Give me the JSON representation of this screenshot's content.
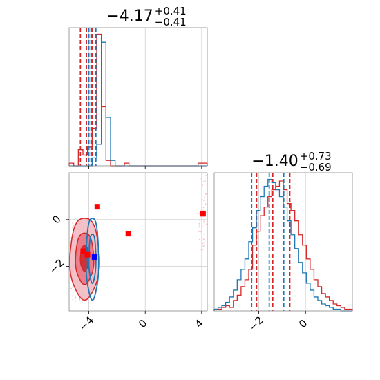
{
  "chart_data": [
    {
      "type": "histogram",
      "panel": "top-left marginal",
      "title": {
        "main": "−4.17",
        "sup": "+0.41",
        "sub": "−0.41"
      },
      "xlim": [
        -5.4,
        4.4
      ],
      "series": [
        {
          "color": "#d62728",
          "values": [
            1,
            0,
            6,
            4,
            7,
            14,
            49,
            22,
            2,
            0,
            0,
            0,
            1,
            0,
            0,
            0,
            0,
            0,
            0,
            0,
            0,
            0,
            0,
            0,
            0,
            0,
            0,
            0,
            1,
            1
          ],
          "quantiles": [
            -4.6,
            -4.17,
            -3.76
          ]
        },
        {
          "color": "#1f77b4",
          "values": [
            0,
            0,
            0,
            0,
            0,
            3,
            8,
            46,
            18,
            2,
            0,
            0,
            0,
            0,
            0,
            0,
            0,
            0,
            0,
            0,
            0,
            0,
            0,
            0,
            0,
            0,
            0,
            0,
            0,
            0
          ],
          "quantiles": [
            -4.0,
            -3.85,
            -3.5
          ]
        }
      ],
      "xticks": [
        -4,
        0,
        4
      ],
      "yticks": []
    },
    {
      "type": "histogram",
      "panel": "bottom-right marginal",
      "title": {
        "main": "−1.40",
        "sup": "+0.73",
        "sub": "−0.69"
      },
      "xlim": [
        -3.9,
        2.0
      ],
      "series": [
        {
          "color": "#d62728",
          "values": [
            1,
            1,
            2,
            3,
            2,
            6,
            9,
            14,
            18,
            24,
            38,
            46,
            55,
            60,
            66,
            70,
            72,
            75,
            70,
            62,
            58,
            52,
            44,
            38,
            30,
            24,
            18,
            14,
            10,
            8,
            6,
            4,
            3,
            2,
            1,
            1
          ],
          "quantiles": [
            -2.09,
            -1.4,
            -0.67
          ]
        },
        {
          "color": "#1f77b4",
          "values": [
            1,
            2,
            3,
            5,
            8,
            12,
            18,
            24,
            30,
            40,
            48,
            58,
            66,
            72,
            76,
            74,
            70,
            66,
            60,
            52,
            44,
            36,
            28,
            22,
            16,
            12,
            8,
            6,
            4,
            3,
            2,
            1,
            1,
            0,
            0,
            0
          ],
          "quantiles": [
            -2.3,
            -1.55,
            -0.93
          ]
        }
      ],
      "xticks": [
        -2,
        0
      ],
      "yticks": []
    },
    {
      "type": "contour",
      "panel": "bottom-left 2D",
      "xlim": [
        -5.4,
        4.4
      ],
      "ylim": [
        -3.9,
        2.0
      ],
      "xticks": [
        -4,
        0,
        4
      ],
      "yticks": [
        -2,
        0
      ],
      "series": [
        {
          "color": "#d62728",
          "center": [
            -4.3,
            -1.65
          ],
          "levels": [
            [
              1.05,
              1.75
            ],
            [
              0.65,
              1.1
            ],
            [
              0.3,
              0.55
            ]
          ]
        },
        {
          "color": "#1f77b4",
          "center": [
            -3.75,
            -1.65
          ],
          "levels": [
            [
              0.45,
              1.75
            ],
            [
              0.25,
              1.05
            ]
          ]
        }
      ],
      "markers": [
        {
          "color": "#ff0000",
          "x": -3.4,
          "y": 0.55
        },
        {
          "color": "#ff0000",
          "x": 4.1,
          "y": 0.25
        },
        {
          "color": "#ff0000",
          "x": -1.2,
          "y": -0.6
        },
        {
          "color": "#ff0000",
          "x": -4.4,
          "y": -1.35
        },
        {
          "color": "#ff0000",
          "x": -4.1,
          "y": -1.5
        },
        {
          "color": "#0000ff",
          "x": -3.6,
          "y": -1.6
        }
      ]
    }
  ]
}
